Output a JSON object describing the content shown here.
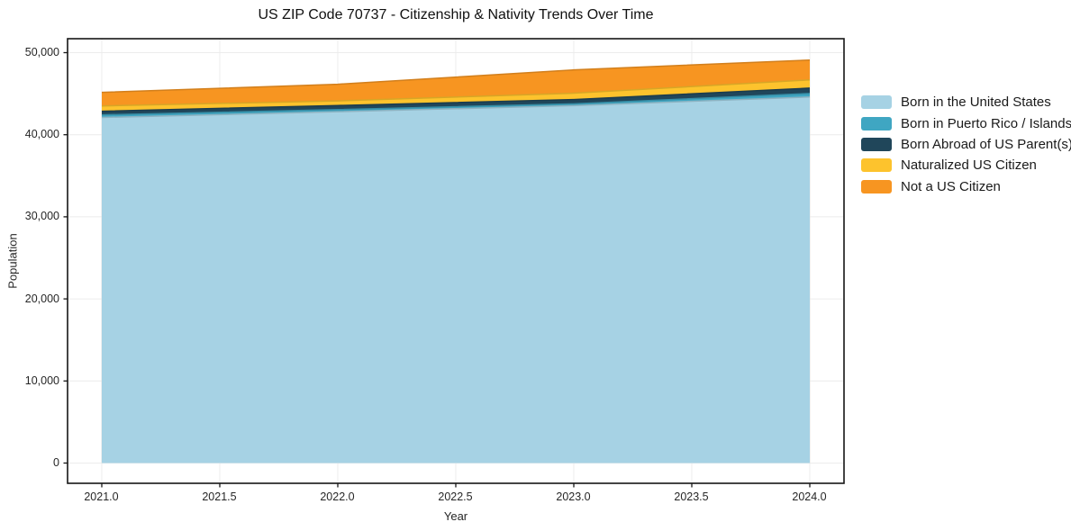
{
  "chart_data": {
    "type": "area",
    "stacked": true,
    "title": "US ZIP Code 70737 - Citizenship & Nativity Trends Over Time",
    "xlabel": "Year",
    "ylabel": "Population",
    "x": [
      2021,
      2022,
      2023,
      2024
    ],
    "xlim": [
      2020.855,
      2024.145
    ],
    "ylim": [
      0,
      50000
    ],
    "grid": true,
    "legend_position": "right-outside",
    "x_ticks": {
      "values": [
        2021.0,
        2021.5,
        2022.0,
        2022.5,
        2023.0,
        2023.5,
        2024.0
      ],
      "labels": [
        "2021.0",
        "2021.5",
        "2022.0",
        "2022.5",
        "2023.0",
        "2023.5",
        "2024.0"
      ]
    },
    "y_ticks": {
      "values": [
        0,
        10000,
        20000,
        30000,
        40000,
        50000
      ],
      "labels": [
        "0",
        "10,000",
        "20,000",
        "30,000",
        "40,000",
        "50,000"
      ]
    },
    "series": [
      {
        "name": "Born in the United States",
        "color": "#A6D2E4",
        "values": [
          42100,
          42800,
          43550,
          44600
        ]
      },
      {
        "name": "Born in Puerto Rico / Islands",
        "color": "#3FA6C2",
        "values": [
          320,
          260,
          210,
          430
        ]
      },
      {
        "name": "Born Abroad of US Parent(s)",
        "color": "#20465A",
        "values": [
          440,
          500,
          530,
          650
        ]
      },
      {
        "name": "Naturalized US Citizen",
        "color": "#FDC32D",
        "values": [
          650,
          560,
          770,
          1000
        ]
      },
      {
        "name": "Not a US Citizen",
        "color": "#F79521",
        "values": [
          1650,
          2030,
          2840,
          2420
        ]
      }
    ],
    "stacked_totals": [
      45160,
      46150,
      47900,
      49100
    ]
  },
  "colors": {
    "spine": "#161616",
    "grid": "#ececec",
    "background": "#ffffff",
    "text": "#1a1a1a"
  }
}
